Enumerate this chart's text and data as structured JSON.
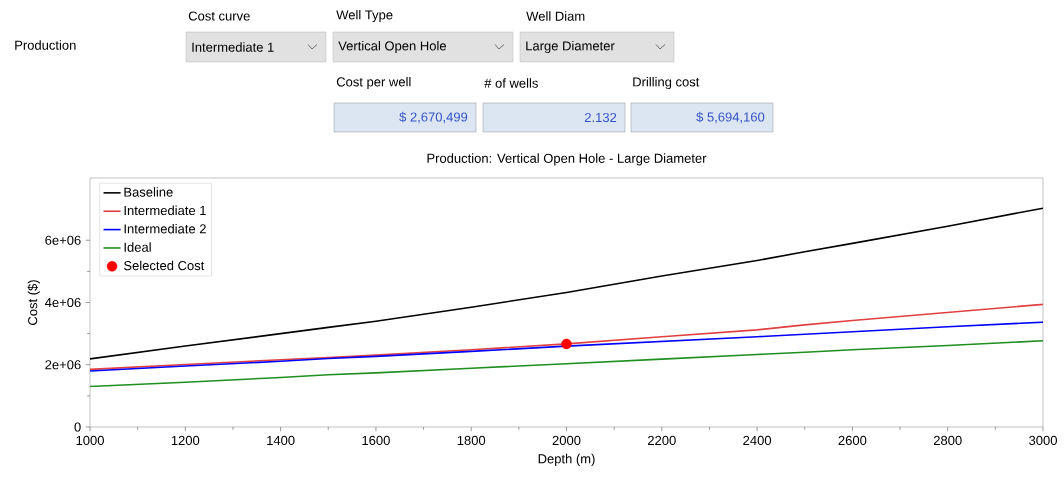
{
  "chart_data": {
    "type": "line",
    "title": "Production: Vertical Open Hole - Large Diameter",
    "xlabel": "Depth (m)",
    "ylabel": "Cost ($)",
    "x": [
      1000,
      1200,
      1400,
      1500,
      1600,
      1800,
      2000,
      2200,
      2400,
      2500,
      2600,
      2800,
      3000
    ],
    "series": [
      {
        "name": "Baseline",
        "color": "#000000",
        "values": [
          2190000,
          2600000,
          3000000,
          3200000,
          3400000,
          3850000,
          4320000,
          4850000,
          5350000,
          5630000,
          5900000,
          6450000,
          7030000
        ]
      },
      {
        "name": "Intermediate 1",
        "color": "#e04040",
        "values": [
          1850000,
          2010000,
          2160000,
          2230000,
          2310000,
          2480000,
          2670000,
          2900000,
          3120000,
          3280000,
          3420000,
          3680000,
          3940000
        ]
      },
      {
        "name": "Intermediate 2",
        "color": "#0000ff",
        "values": [
          1800000,
          1960000,
          2110000,
          2200000,
          2270000,
          2430000,
          2600000,
          2750000,
          2900000,
          2980000,
          3060000,
          3220000,
          3370000
        ]
      },
      {
        "name": "Ideal",
        "color": "#1f8f1f",
        "values": [
          1300000,
          1440000,
          1590000,
          1680000,
          1740000,
          1890000,
          2030000,
          2180000,
          2330000,
          2400000,
          2480000,
          2620000,
          2770000
        ]
      },
      {
        "name": "Selected Cost",
        "type": "scatter",
        "marker": "circle",
        "color": "#ff0000",
        "x": [
          2000
        ],
        "values": [
          2670000
        ]
      }
    ],
    "xlim": [
      1000,
      3000
    ],
    "ylim": [
      0,
      8000000
    ],
    "xticks": [
      1000,
      1200,
      1400,
      1600,
      1800,
      2000,
      2200,
      2400,
      2600,
      2800,
      3000
    ],
    "yticks": [
      0,
      {
        "value": 2000000,
        "label": "2e+06"
      },
      {
        "value": 4000000,
        "label": "4e+06"
      },
      {
        "value": 6000000,
        "label": "6e+06"
      }
    ],
    "legend": "top left",
    "grid": false,
    "annotations": [
      "Production",
      "Cost curve",
      "Well Type",
      "Well Diam",
      "Intermediate 1",
      "Vertical Open Hole",
      "Large Diameter",
      "Cost per well",
      "# of wells",
      "Drilling cost",
      "$ 2,670,499",
      "2.132",
      "$ 5,694,160"
    ]
  }
}
